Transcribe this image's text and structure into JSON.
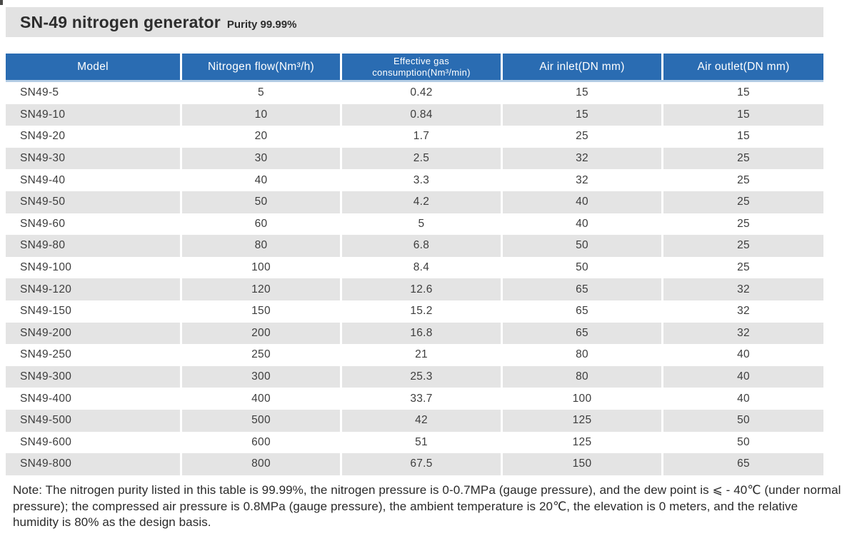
{
  "title": {
    "main": "SN-49 nitrogen generator",
    "sub": "Purity 99.99%"
  },
  "table": {
    "columns": [
      "Model",
      "Nitrogen flow(Nm³/h)",
      "Effective gas consumption(Nm³/min)",
      "Air inlet(DN mm)",
      "Air outlet(DN mm)"
    ],
    "rows": [
      [
        "SN49-5",
        "5",
        "0.42",
        "15",
        "15"
      ],
      [
        "SN49-10",
        "10",
        "0.84",
        "15",
        "15"
      ],
      [
        "SN49-20",
        "20",
        "1.7",
        "25",
        "15"
      ],
      [
        "SN49-30",
        "30",
        "2.5",
        "32",
        "25"
      ],
      [
        "SN49-40",
        "40",
        "3.3",
        "32",
        "25"
      ],
      [
        "SN49-50",
        "50",
        "4.2",
        "40",
        "25"
      ],
      [
        "SN49-60",
        "60",
        "5",
        "40",
        "25"
      ],
      [
        "SN49-80",
        "80",
        "6.8",
        "50",
        "25"
      ],
      [
        "SN49-100",
        "100",
        "8.4",
        "50",
        "25"
      ],
      [
        "SN49-120",
        "120",
        "12.6",
        "65",
        "32"
      ],
      [
        "SN49-150",
        "150",
        "15.2",
        "65",
        "32"
      ],
      [
        "SN49-200",
        "200",
        "16.8",
        "65",
        "32"
      ],
      [
        "SN49-250",
        "250",
        "21",
        "80",
        "40"
      ],
      [
        "SN49-300",
        "300",
        "25.3",
        "80",
        "40"
      ],
      [
        "SN49-400",
        "400",
        "33.7",
        "100",
        "40"
      ],
      [
        "SN49-500",
        "500",
        "42",
        "125",
        "50"
      ],
      [
        "SN49-600",
        "600",
        "51",
        "125",
        "50"
      ],
      [
        "SN49-800",
        "800",
        "67.5",
        "150",
        "65"
      ]
    ]
  },
  "note": "Note: The nitrogen purity listed in this table is 99.99%, the nitrogen pressure is 0-0.7MPa (gauge pressure), and the dew point is ⩽ - 40℃ (under normal pressure); the compressed air pressure is 0.8MPa (gauge pressure), the ambient temperature is 20℃, the elevation is 0 meters, and the relative humidity is 80% as the design basis.",
  "colors": {
    "header_blue": "#2a6cb2",
    "header_underline": "#b3cce4",
    "row_gray": "#e4e4e4",
    "title_bar_gray": "#e2e2e2"
  }
}
